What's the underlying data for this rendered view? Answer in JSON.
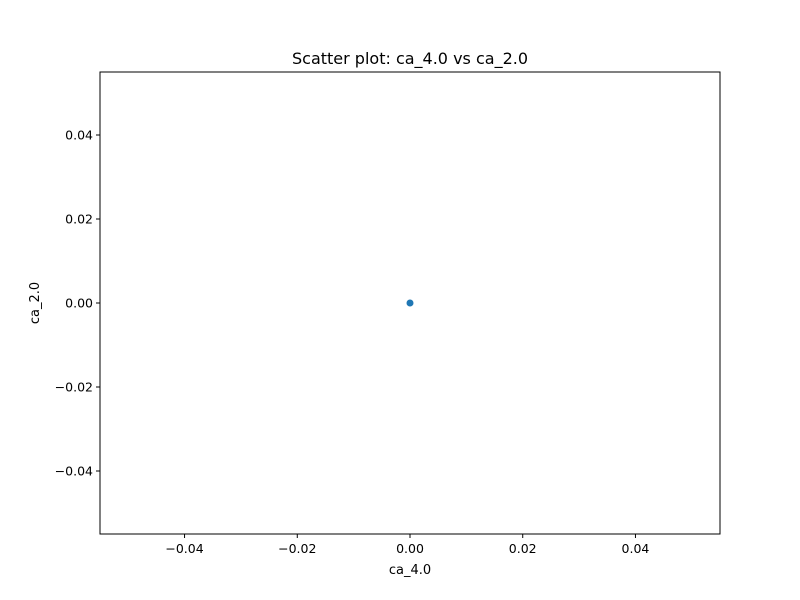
{
  "chart_data": {
    "type": "scatter",
    "title": "Scatter plot: ca_4.0 vs ca_2.0",
    "xlabel": "ca_4.0",
    "ylabel": "ca_2.0",
    "xlim": [
      -0.055,
      0.055
    ],
    "ylim": [
      -0.055,
      0.055
    ],
    "xticks": [
      -0.04,
      -0.02,
      0.0,
      0.02,
      0.04
    ],
    "yticks": [
      -0.04,
      -0.02,
      0.0,
      0.02,
      0.04
    ],
    "xtick_labels": [
      "−0.04",
      "−0.02",
      "0.00",
      "0.02",
      "0.04"
    ],
    "ytick_labels": [
      "−0.04",
      "−0.02",
      "0.00",
      "0.02",
      "0.04"
    ],
    "grid": false,
    "series": [
      {
        "x": [
          0.0
        ],
        "y": [
          0.0
        ],
        "color": "#1f77b4"
      }
    ]
  }
}
